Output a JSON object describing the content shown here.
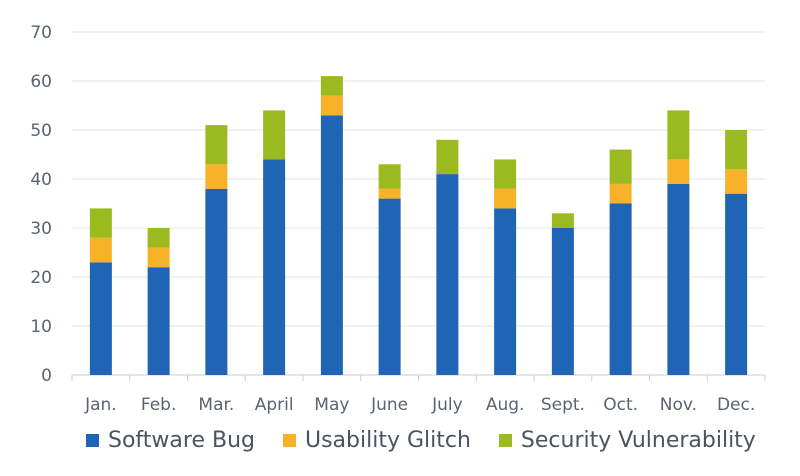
{
  "chart_data": {
    "type": "bar",
    "stacked": true,
    "categories": [
      "Jan.",
      "Feb.",
      "Mar.",
      "April",
      "May",
      "June",
      "July",
      "Aug.",
      "Sept.",
      "Oct.",
      "Nov.",
      "Dec."
    ],
    "series": [
      {
        "name": "Software Bug",
        "color": "#1f64b5",
        "values": [
          23,
          22,
          38,
          44,
          53,
          36,
          41,
          34,
          30,
          35,
          39,
          37
        ]
      },
      {
        "name": "Usability Glitch",
        "color": "#f7b22a",
        "values": [
          5,
          4,
          5,
          0,
          4,
          2,
          0,
          4,
          0,
          4,
          5,
          5
        ]
      },
      {
        "name": "Security Vulnerability",
        "color": "#9bba1f",
        "values": [
          6,
          4,
          8,
          10,
          4,
          5,
          7,
          6,
          3,
          7,
          10,
          8
        ]
      }
    ],
    "y_ticks": [
      "0",
      "10",
      "20",
      "30",
      "40",
      "50",
      "60",
      "70"
    ],
    "ylim": [
      0,
      70
    ],
    "grid": true,
    "legend_position": "bottom"
  }
}
